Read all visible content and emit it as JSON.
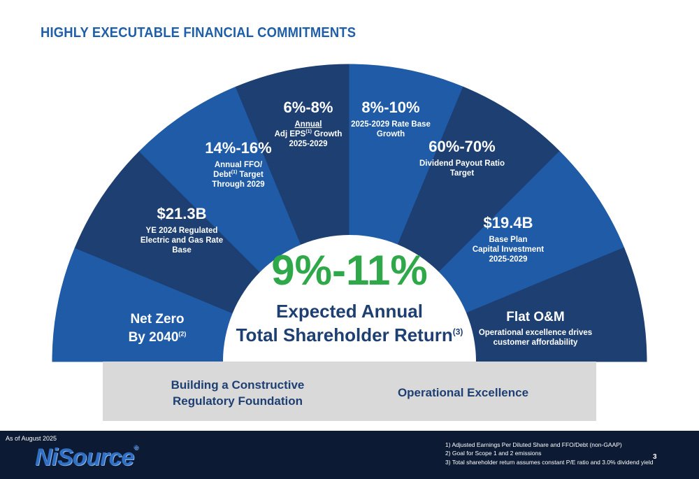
{
  "title": "HIGHLY EXECUTABLE FINANCIAL COMMITMENTS",
  "colors": {
    "title": "#1f5ea8",
    "segment_dark": "#1e3f72",
    "segment_mid": "#1f5ba6",
    "accent_green": "#2fa84a",
    "base_gray": "#d9d9d9",
    "footer": "#0c1b33"
  },
  "segments": {
    "net_zero": {
      "line1": "Net Zero",
      "line2": "By 2040",
      "sup": "(2)"
    },
    "rate_base_value": {
      "big": "$21.3B",
      "line1": "YE 2024 Regulated",
      "line2": "Electric and Gas Rate",
      "line3": "Base"
    },
    "ffo_debt": {
      "big": "14%-16%",
      "line1": "Annual FFO/",
      "line2a": "Debt",
      "sup": "(1)",
      "line2b": " Target",
      "line3": "Through 2029"
    },
    "eps_growth": {
      "big": "6%-8%",
      "line1": "Annual",
      "line2a": "Adj EPS",
      "sup": "(1)",
      "line2b": " Growth",
      "line3": "2025-2029"
    },
    "rate_base_growth": {
      "big": "8%-10%",
      "line1": "2025-2029 Rate Base",
      "line2": "Growth"
    },
    "payout": {
      "big": "60%-70%",
      "line1": "Dividend Payout Ratio",
      "line2": "Target"
    },
    "capital": {
      "big": "$19.4B",
      "line1": "Base Plan",
      "line2": "Capital Investment",
      "line3": "2025-2029"
    },
    "om": {
      "big": "Flat O&M",
      "line1": "Operational excellence drives",
      "line2": "customer affordability"
    }
  },
  "center": {
    "big": "9%-11%",
    "line1": "Expected Annual",
    "line2": "Total Shareholder Return",
    "sup": "(3)"
  },
  "base": {
    "left_line1": "Building a Constructive",
    "left_line2": "Regulatory Foundation",
    "right": "Operational Excellence"
  },
  "footer": {
    "as_of": "As of August 2025",
    "logo": "NiSource",
    "logo_reg": "®",
    "notes": [
      "1) Adjusted Earnings Per Diluted Share and FFO/Debt (non-GAAP)",
      "2) Goal for Scope 1 and 2 emissions",
      "3) Total shareholder return assumes constant P/E ratio and 3.0% dividend yield"
    ],
    "page": "3"
  }
}
